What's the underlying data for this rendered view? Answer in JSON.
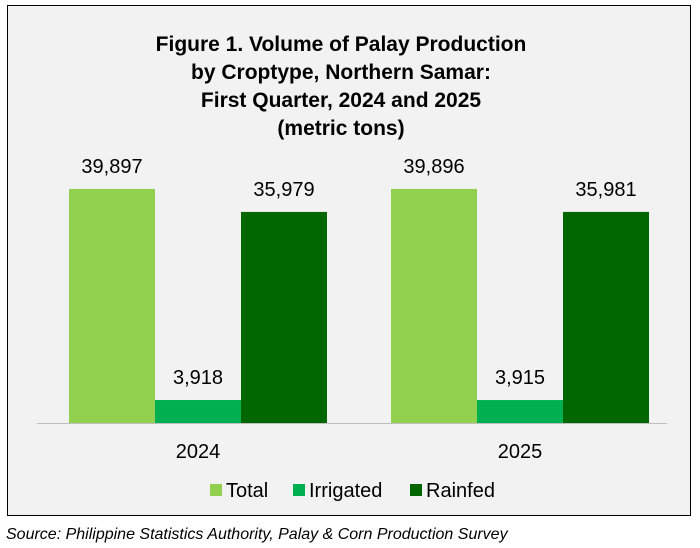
{
  "chart_data": {
    "type": "bar",
    "title_lines": [
      "Figure 1. Volume of Palay Production",
      "by Croptype, Northern Samar:",
      "First Quarter, 2024 and 2025",
      "(metric tons)"
    ],
    "categories": [
      "2024",
      "2025"
    ],
    "series": [
      {
        "name": "Total",
        "color": "#92d050",
        "values": [
          39897,
          39896
        ],
        "labels": [
          "39,897",
          "39,896"
        ]
      },
      {
        "name": "Irrigated",
        "color": "#00b050",
        "values": [
          3918,
          3915
        ],
        "labels": [
          "3,918",
          "3,915"
        ]
      },
      {
        "name": "Rainfed",
        "color": "#006600",
        "values": [
          35979,
          35981
        ],
        "labels": [
          "35,979",
          "35,981"
        ]
      }
    ],
    "ylim": [
      0,
      45000
    ],
    "legend_position": "bottom",
    "grid": false
  },
  "source": "Source: Philippine Statistics Authority, Palay & Corn Production Survey"
}
